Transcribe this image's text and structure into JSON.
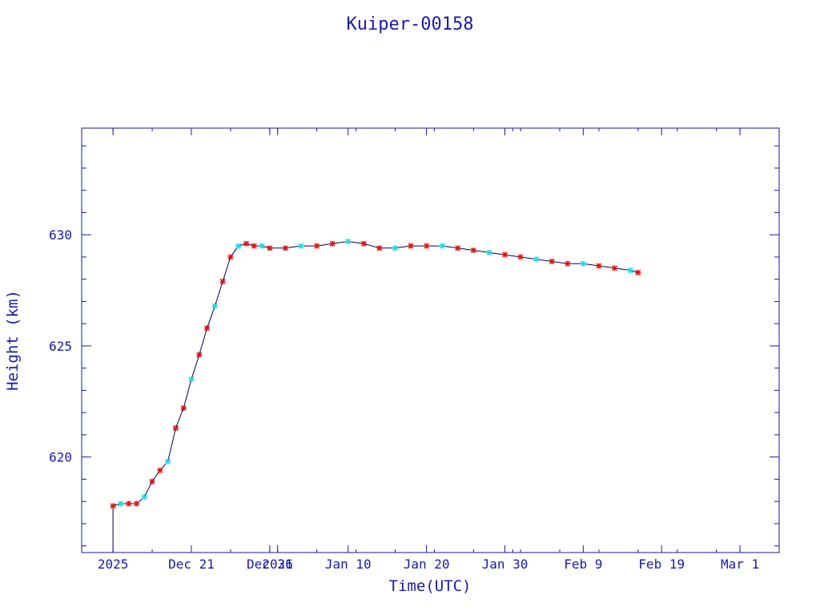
{
  "colors": {
    "axis": "#1a1aa6",
    "line": "#000050",
    "marker_red": "#e01010",
    "marker_cyan": "#20d8e8",
    "background": "#ffffff"
  },
  "chart_data": {
    "type": "line",
    "title": "Kuiper-00158",
    "xlabel": "Time(UTC)",
    "ylabel": "Height (km)",
    "x_axis": "date",
    "xlim": [
      "2025-12-07",
      "2026-03-06"
    ],
    "ylim": [
      615.7,
      634.8
    ],
    "x_tick_labels": [
      {
        "date": "2025-12-11",
        "label": "2025"
      },
      {
        "date": "2025-12-21",
        "label": "Dec 21"
      },
      {
        "date": "2025-12-31",
        "label": "Dec 31"
      },
      {
        "date": "2026-01-01",
        "label": "2026"
      },
      {
        "date": "2026-01-10",
        "label": "Jan 10"
      },
      {
        "date": "2026-01-20",
        "label": "Jan 20"
      },
      {
        "date": "2026-01-30",
        "label": "Jan 30"
      },
      {
        "date": "2026-02-09",
        "label": "Feb  9"
      },
      {
        "date": "2026-02-19",
        "label": "Feb 19"
      },
      {
        "date": "2026-03-01",
        "label": "Mar  1"
      }
    ],
    "y_ticks": [
      620,
      625,
      630
    ],
    "grid": false,
    "legend": "none",
    "series": [
      {
        "x": [
          "2025-12-11",
          "2025-12-12",
          "2025-12-13",
          "2025-12-14",
          "2025-12-15",
          "2025-12-16",
          "2025-12-17",
          "2025-12-18",
          "2025-12-19",
          "2025-12-20",
          "2025-12-21",
          "2025-12-22",
          "2025-12-23",
          "2025-12-24",
          "2025-12-25",
          "2025-12-26",
          "2025-12-27",
          "2025-12-28",
          "2025-12-29",
          "2025-12-30",
          "2025-12-31",
          "2026-01-02",
          "2026-01-04",
          "2026-01-06",
          "2026-01-08",
          "2026-01-10",
          "2026-01-12",
          "2026-01-14",
          "2026-01-16",
          "2026-01-18",
          "2026-01-20",
          "2026-01-22",
          "2026-01-24",
          "2026-01-26",
          "2026-01-28",
          "2026-01-30",
          "2026-02-01",
          "2026-02-03",
          "2026-02-05",
          "2026-02-07",
          "2026-02-09",
          "2026-02-11",
          "2026-02-13",
          "2026-02-15",
          "2026-02-16"
        ],
        "values": [
          617.8,
          617.9,
          617.9,
          617.9,
          618.2,
          618.9,
          619.4,
          619.8,
          621.3,
          622.2,
          623.5,
          624.6,
          625.8,
          626.8,
          627.9,
          629.0,
          629.5,
          629.6,
          629.5,
          629.5,
          629.4,
          629.4,
          629.5,
          629.5,
          629.6,
          629.7,
          629.6,
          629.4,
          629.4,
          629.5,
          629.5,
          629.5,
          629.4,
          629.3,
          629.2,
          629.1,
          629.0,
          628.9,
          628.8,
          628.7,
          628.7,
          628.6,
          628.5,
          628.4,
          628.3
        ]
      }
    ]
  }
}
